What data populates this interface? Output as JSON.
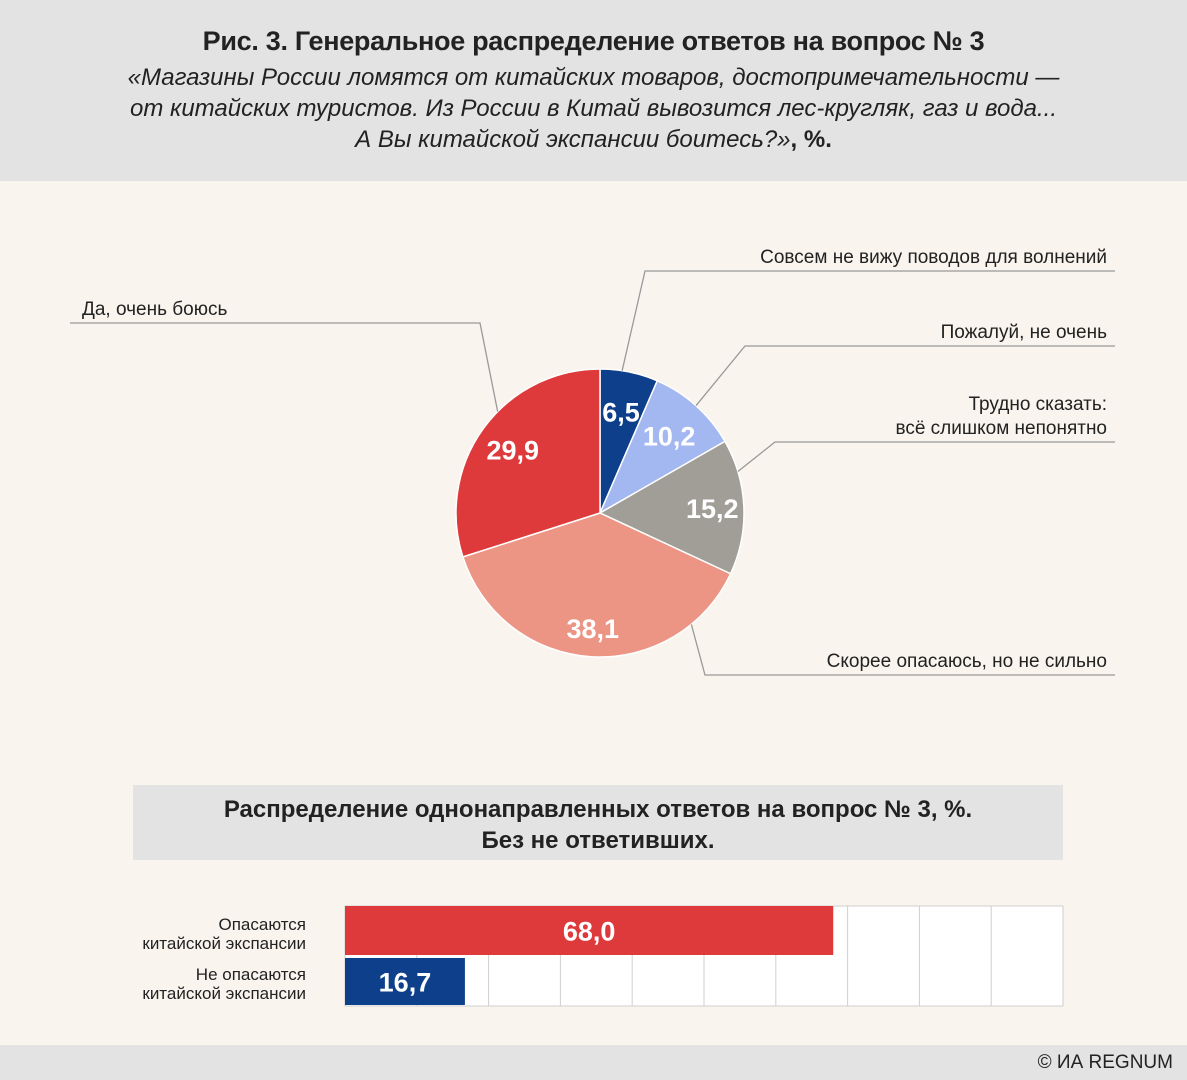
{
  "header": {
    "title": "Рис. 3. Генеральное распределение ответов на вопрос № 3",
    "subtitle_lines": [
      "«Магазины России ломятся от китайских товаров, достопримечательности —",
      "от китайских туристов. Из России в Китай вывозится лес-кругляк, газ и вода...",
      "А Вы китайской экспансии боитесь?»"
    ],
    "subtitle_suffix": ", %."
  },
  "chart_data": [
    {
      "type": "pie",
      "slices": [
        {
          "label": "Совсем не вижу поводов для волнений",
          "value": 6.5,
          "value_label": "6,5",
          "color": "#0d3f8a"
        },
        {
          "label": "Пожалуй, не очень",
          "value": 10.2,
          "value_label": "10,2",
          "color": "#a3b7f0"
        },
        {
          "label": "Трудно сказать: всё слишком непонятно",
          "value": 15.2,
          "value_label": "15,2",
          "color": "#a19e98"
        },
        {
          "label": "Скорее опасаюсь, но не сильно",
          "value": 38.1,
          "value_label": "38,1",
          "color": "#ec9585"
        },
        {
          "label": "Да, очень боюсь",
          "value": 29.9,
          "value_label": "29,9",
          "color": "#de3a3c"
        }
      ],
      "label_lines": {
        "uncertain": [
          "Трудно сказать:",
          "всё слишком непонятно"
        ]
      }
    },
    {
      "type": "bar",
      "orientation": "horizontal",
      "title_lines": [
        "Распределение однонаправленных ответов на вопрос № 3, %.",
        "Без не ответивших."
      ],
      "bars": [
        {
          "label_lines": [
            "Опасаются",
            "китайской экспансии"
          ],
          "value": 68.0,
          "value_label": "68,0",
          "color": "#de3a3c"
        },
        {
          "label_lines": [
            "Не опасаются",
            "китайской экспансии"
          ],
          "value": 16.7,
          "value_label": "16,7",
          "color": "#0d3f8a"
        }
      ],
      "xlim": [
        0,
        100
      ],
      "grid": true
    }
  ],
  "footer": {
    "copyright": "© ИА REGNUM"
  }
}
